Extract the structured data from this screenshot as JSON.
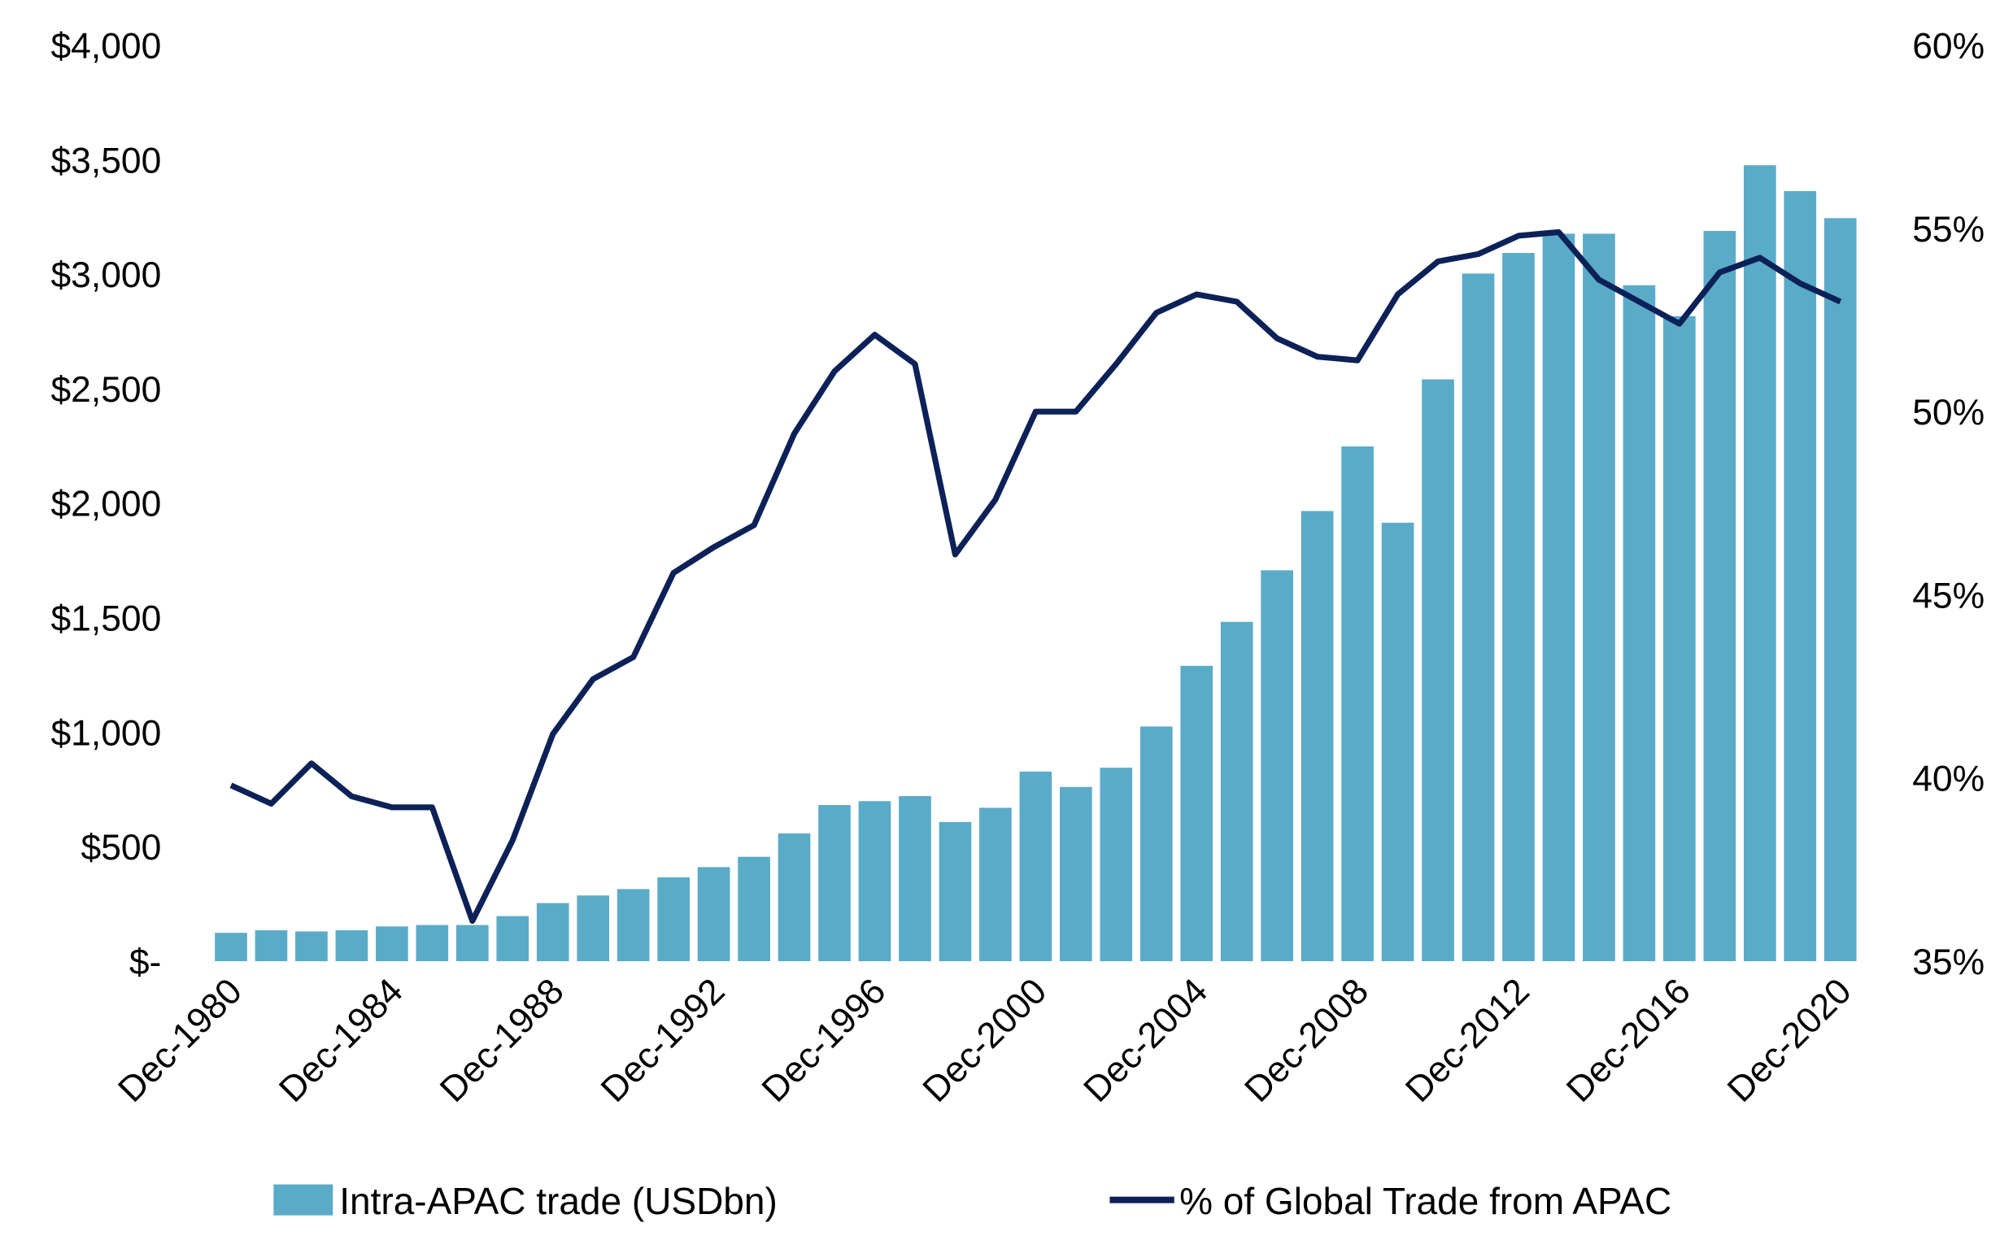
{
  "chart_data": {
    "type": "bar+line",
    "title": "",
    "categories": [
      "Dec-1980",
      "Dec-1981",
      "Dec-1982",
      "Dec-1983",
      "Dec-1984",
      "Dec-1985",
      "Dec-1986",
      "Dec-1987",
      "Dec-1988",
      "Dec-1989",
      "Dec-1990",
      "Dec-1991",
      "Dec-1992",
      "Dec-1993",
      "Dec-1994",
      "Dec-1995",
      "Dec-1996",
      "Dec-1997",
      "Dec-1998",
      "Dec-1999",
      "Dec-2000",
      "Dec-2001",
      "Dec-2002",
      "Dec-2003",
      "Dec-2004",
      "Dec-2005",
      "Dec-2006",
      "Dec-2007",
      "Dec-2008",
      "Dec-2009",
      "Dec-2010",
      "Dec-2011",
      "Dec-2012",
      "Dec-2013",
      "Dec-2014",
      "Dec-2015",
      "Dec-2016",
      "Dec-2017",
      "Dec-2018",
      "Dec-2019",
      "Dec-2020"
    ],
    "x_tick_labels": [
      "Dec-1980",
      "Dec-1984",
      "Dec-1988",
      "Dec-1992",
      "Dec-1996",
      "Dec-2000",
      "Dec-2004",
      "Dec-2008",
      "Dec-2012",
      "Dec-2016",
      "Dec-2020"
    ],
    "series": [
      {
        "name": "Intra-APAC trade (USDbn)",
        "type": "bar",
        "axis": "left",
        "color": "#5AABC8",
        "values": [
          124,
          135,
          130,
          135,
          152,
          158,
          158,
          197,
          254,
          287,
          315,
          366,
          411,
          456,
          558,
          682,
          699,
          721,
          608,
          670,
          828,
          761,
          845,
          1025,
          1290,
          1482,
          1707,
          1966,
          2248,
          1915,
          2541,
          3003,
          3093,
          3177,
          3177,
          2952,
          2817,
          3189,
          3476,
          3363,
          3245
        ]
      },
      {
        "name": "% of Global Trade from APAC",
        "type": "line",
        "axis": "right",
        "color": "#0C2157",
        "values": [
          39.8,
          39.3,
          40.4,
          39.5,
          39.2,
          39.2,
          36.1,
          38.3,
          41.2,
          42.7,
          43.3,
          45.6,
          46.3,
          46.9,
          49.4,
          51.1,
          52.1,
          51.3,
          46.1,
          47.6,
          50.0,
          50.0,
          51.3,
          52.7,
          53.2,
          53.0,
          52.0,
          51.5,
          51.4,
          53.2,
          54.1,
          54.3,
          54.8,
          54.9,
          53.6,
          53.0,
          52.4,
          53.8,
          54.2,
          53.5,
          53.0
        ]
      }
    ],
    "y_left": {
      "range": [
        0,
        4000
      ],
      "tick_labels": [
        "$-",
        "$500",
        "$1,000",
        "$1,500",
        "$2,000",
        "$2,500",
        "$3,000",
        "$3,500",
        "$4,000"
      ]
    },
    "y_right": {
      "range": [
        35,
        60
      ],
      "tick_labels": [
        "35%",
        "40%",
        "45%",
        "50%",
        "55%",
        "60%"
      ]
    },
    "grid": false,
    "legend_position": "bottom"
  }
}
